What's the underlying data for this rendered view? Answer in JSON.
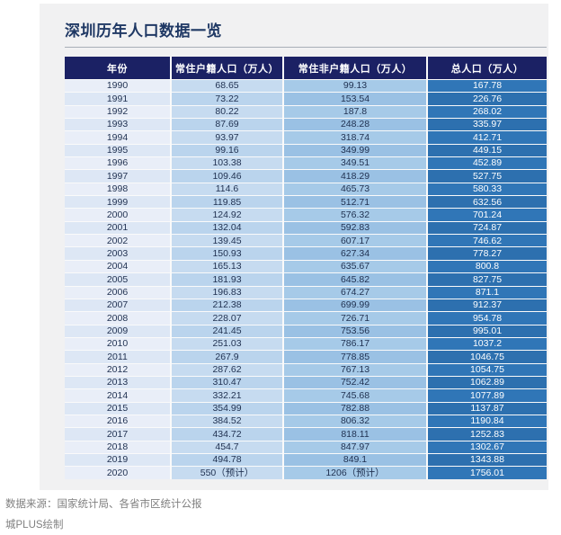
{
  "page": {
    "title": "深圳历年人口数据一览",
    "footer": {
      "source": "数据来源：国家统计局、各省市区统计公报",
      "credit": "城PLUS绘制"
    }
  },
  "colors": {
    "title_text": "#1f3864",
    "panel_bg": "#f1f1f2",
    "header_bg": "#1b2164",
    "header_text": "#ffffff",
    "year_col_bg": "#e9eef8",
    "registered_col_bg": "#bdd7ee",
    "non_registered_col_bg": "#9dc3e6",
    "total_col_bg": "#2e74b5",
    "total_col_text": "#ffffff",
    "footer_text": "#7f7f7f"
  },
  "chart_data": {
    "type": "table",
    "title": "深圳历年人口数据一览",
    "columns": [
      "年份",
      "常住户籍人口（万人）",
      "常住非户籍人口（万人）",
      "总人口（万人）"
    ],
    "rows": [
      [
        "1990",
        "68.65",
        "99.13",
        "167.78"
      ],
      [
        "1991",
        "73.22",
        "153.54",
        "226.76"
      ],
      [
        "1992",
        "80.22",
        "187.8",
        "268.02"
      ],
      [
        "1993",
        "87.69",
        "248.28",
        "335.97"
      ],
      [
        "1994",
        "93.97",
        "318.74",
        "412.71"
      ],
      [
        "1995",
        "99.16",
        "349.99",
        "449.15"
      ],
      [
        "1996",
        "103.38",
        "349.51",
        "452.89"
      ],
      [
        "1997",
        "109.46",
        "418.29",
        "527.75"
      ],
      [
        "1998",
        "114.6",
        "465.73",
        "580.33"
      ],
      [
        "1999",
        "119.85",
        "512.71",
        "632.56"
      ],
      [
        "2000",
        "124.92",
        "576.32",
        "701.24"
      ],
      [
        "2001",
        "132.04",
        "592.83",
        "724.87"
      ],
      [
        "2002",
        "139.45",
        "607.17",
        "746.62"
      ],
      [
        "2003",
        "150.93",
        "627.34",
        "778.27"
      ],
      [
        "2004",
        "165.13",
        "635.67",
        "800.8"
      ],
      [
        "2005",
        "181.93",
        "645.82",
        "827.75"
      ],
      [
        "2006",
        "196.83",
        "674.27",
        "871.1"
      ],
      [
        "2007",
        "212.38",
        "699.99",
        "912.37"
      ],
      [
        "2008",
        "228.07",
        "726.71",
        "954.78"
      ],
      [
        "2009",
        "241.45",
        "753.56",
        "995.01"
      ],
      [
        "2010",
        "251.03",
        "786.17",
        "1037.2"
      ],
      [
        "2011",
        "267.9",
        "778.85",
        "1046.75"
      ],
      [
        "2012",
        "287.62",
        "767.13",
        "1054.75"
      ],
      [
        "2013",
        "310.47",
        "752.42",
        "1062.89"
      ],
      [
        "2014",
        "332.21",
        "745.68",
        "1077.89"
      ],
      [
        "2015",
        "354.99",
        "782.88",
        "1137.87"
      ],
      [
        "2016",
        "384.52",
        "806.32",
        "1190.84"
      ],
      [
        "2017",
        "434.72",
        "818.11",
        "1252.83"
      ],
      [
        "2018",
        "454.7",
        "847.97",
        "1302.67"
      ],
      [
        "2019",
        "494.78",
        "849.1",
        "1343.88"
      ],
      [
        "2020",
        "550（预计）",
        "1206（预计）",
        "1756.01"
      ]
    ]
  }
}
